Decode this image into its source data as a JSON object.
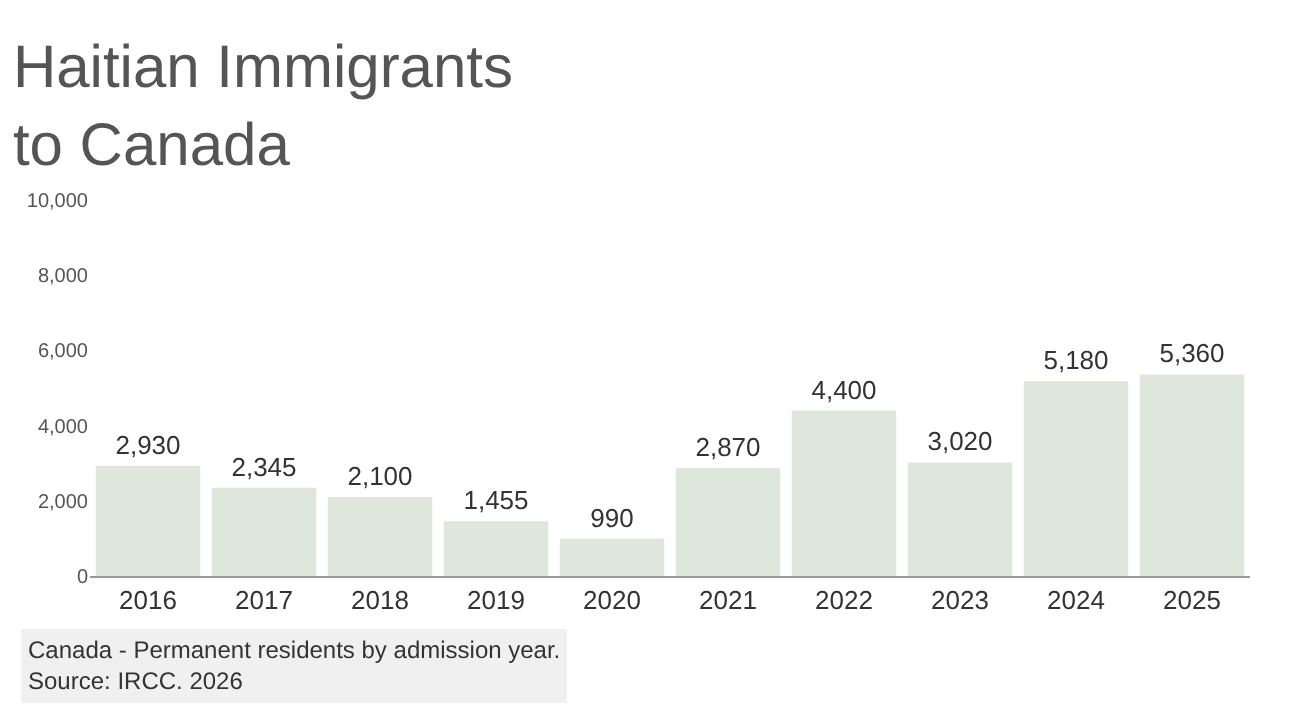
{
  "chart_data": {
    "type": "bar",
    "title": "Haitian Immigrants\nto Canada",
    "categories": [
      "2016",
      "2017",
      "2018",
      "2019",
      "2020",
      "2021",
      "2022",
      "2023",
      "2024",
      "2025"
    ],
    "values": [
      2930,
      2345,
      2100,
      1455,
      990,
      2870,
      4400,
      3020,
      5180,
      5360
    ],
    "value_labels": [
      "2,930",
      "2,345",
      "2,100",
      "1,455",
      "990",
      "2,870",
      "4,400",
      "3,020",
      "5,180",
      "5,360"
    ],
    "color": "#dfe6dc",
    "ylim": [
      0,
      10000
    ],
    "yticks": [
      0,
      {
        "value": 2000,
        "label": "2,000"
      },
      {
        "value": 4000,
        "label": "4,000"
      },
      {
        "value": 6000,
        "label": "6,000"
      },
      {
        "value": 8000,
        "label": "8,000"
      },
      {
        "value": 10000,
        "label": "10,000"
      }
    ],
    "grid": false,
    "annotations": [
      "Canada - Permanent residents by admission year.\nSource: IRCC. 2026"
    ]
  }
}
